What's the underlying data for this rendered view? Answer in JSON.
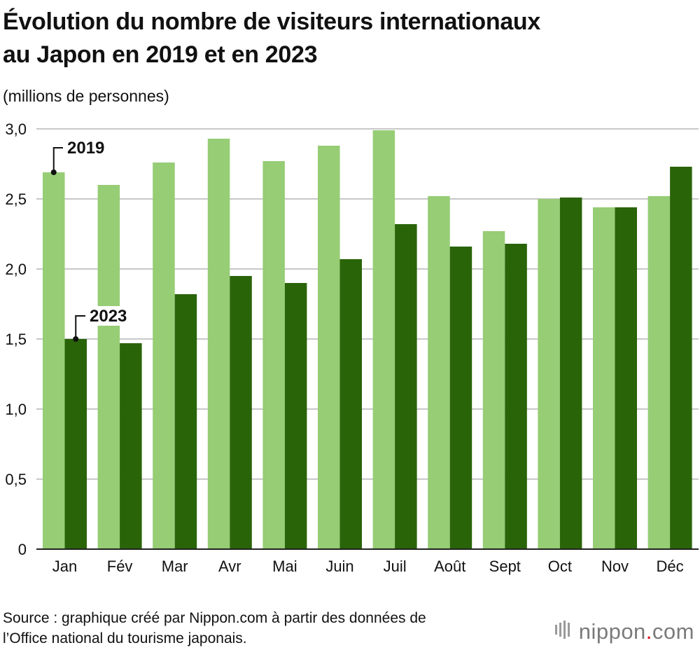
{
  "title_line1": "Évolution du nombre de visiteurs internationaux",
  "title_line2": "au Japon en 2019 et en 2023",
  "unit_label": "(millions de personnes)",
  "source_line1": "Source : graphique créé par Nippon.com à partir des données de",
  "source_line2": "l’Office national du tourisme japonais.",
  "logo": {
    "name": "nippon",
    "dot": ".",
    "suffix": "com"
  },
  "colors": {
    "series_2019": "#96cd75",
    "series_2023": "#2a6409",
    "grid": "#c8c8c8",
    "axis": "#222222"
  },
  "chart_data": {
    "type": "bar",
    "title": "Évolution du nombre de visiteurs internationaux au Japon en 2019 et en 2023",
    "ylabel": "(millions de personnes)",
    "categories": [
      "Jan",
      "Fév",
      "Mar",
      "Avr",
      "Mai",
      "Juin",
      "Juil",
      "Août",
      "Sept",
      "Oct",
      "Nov",
      "Déc"
    ],
    "series": [
      {
        "name": "2019",
        "values": [
          2.69,
          2.6,
          2.76,
          2.93,
          2.77,
          2.88,
          2.99,
          2.52,
          2.27,
          2.5,
          2.44,
          2.52
        ]
      },
      {
        "name": "2023",
        "values": [
          1.5,
          1.47,
          1.82,
          1.95,
          1.9,
          2.07,
          2.32,
          2.16,
          2.18,
          2.51,
          2.44,
          2.73
        ]
      }
    ],
    "ylim": [
      0,
      3.0
    ],
    "yticks": [
      0,
      0.5,
      1.0,
      1.5,
      2.0,
      2.5,
      3.0
    ],
    "ytick_labels": [
      "0",
      "0,5",
      "1,0",
      "1,5",
      "2,0",
      "2,5",
      "3,0"
    ],
    "grid": true
  }
}
